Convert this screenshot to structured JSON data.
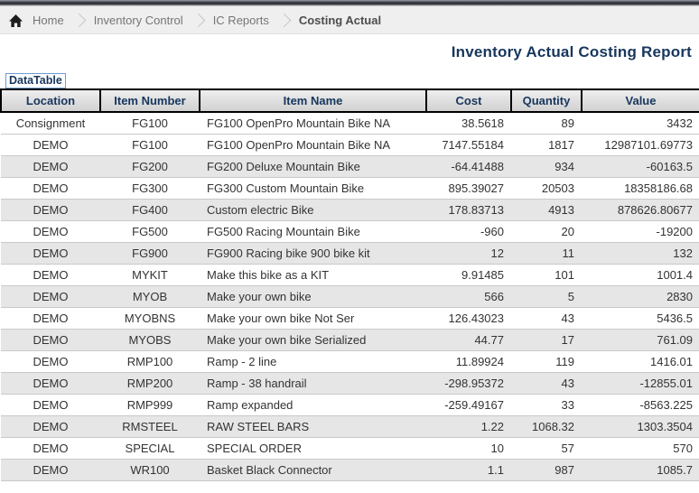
{
  "colors": {
    "accent_navy": "#17365d",
    "breadcrumb_bg": "#efefef",
    "header_cell_bg": "#dcdcdc",
    "header_border": "#000000",
    "alt_row_bg": "#e6e6e6",
    "row_separator": "#c9c9c9",
    "tab_border_blue": "#6b9bd2",
    "crumb_text": "#757575"
  },
  "icons": {
    "home": "home-icon",
    "separator": "chevron-right-icon"
  },
  "breadcrumb": {
    "items": [
      {
        "label": "Home",
        "current": false
      },
      {
        "label": "Inventory Control",
        "current": false
      },
      {
        "label": "IC Reports",
        "current": false
      },
      {
        "label": "Costing Actual",
        "current": true
      }
    ]
  },
  "page": {
    "title": "Inventory Actual Costing Report"
  },
  "datatable": {
    "label": "DataTable",
    "columns": [
      {
        "label": "Location",
        "align": "center"
      },
      {
        "label": "Item Number",
        "align": "center"
      },
      {
        "label": "Item Name",
        "align": "left"
      },
      {
        "label": "Cost",
        "align": "right"
      },
      {
        "label": "Quantity",
        "align": "right"
      },
      {
        "label": "Value",
        "align": "right"
      }
    ],
    "rows": [
      [
        "Consignment",
        "FG100",
        "FG100 OpenPro Mountain Bike NA",
        "38.5618",
        "89",
        "3432"
      ],
      [
        "DEMO",
        "FG100",
        "FG100 OpenPro Mountain Bike NA",
        "7147.55184",
        "1817",
        "12987101.69773"
      ],
      [
        "DEMO",
        "FG200",
        "FG200 Deluxe Mountain Bike",
        "-64.41488",
        "934",
        "-60163.5"
      ],
      [
        "DEMO",
        "FG300",
        "FG300 Custom Mountain Bike",
        "895.39027",
        "20503",
        "18358186.68"
      ],
      [
        "DEMO",
        "FG400",
        "Custom electric Bike",
        "178.83713",
        "4913",
        "878626.80677"
      ],
      [
        "DEMO",
        "FG500",
        "FG500 Racing Mountain Bike",
        "-960",
        "20",
        "-19200"
      ],
      [
        "DEMO",
        "FG900",
        "FG900 Racing bike 900 bike kit",
        "12",
        "11",
        "132"
      ],
      [
        "DEMO",
        "MYKIT",
        "Make this bike as a KIT",
        "9.91485",
        "101",
        "1001.4"
      ],
      [
        "DEMO",
        "MYOB",
        "Make your own bike",
        "566",
        "5",
        "2830"
      ],
      [
        "DEMO",
        "MYOBNS",
        "Make your own bike Not Ser",
        "126.43023",
        "43",
        "5436.5"
      ],
      [
        "DEMO",
        "MYOBS",
        "Make your own bike Serialized",
        "44.77",
        "17",
        "761.09"
      ],
      [
        "DEMO",
        "RMP100",
        "Ramp - 2 line",
        "11.89924",
        "119",
        "1416.01"
      ],
      [
        "DEMO",
        "RMP200",
        "Ramp - 38 handrail",
        "-298.95372",
        "43",
        "-12855.01"
      ],
      [
        "DEMO",
        "RMP999",
        "Ramp expanded",
        "-259.49167",
        "33",
        "-8563.225"
      ],
      [
        "DEMO",
        "RMSTEEL",
        "RAW STEEL BARS",
        "1.22",
        "1068.32",
        "1303.3504"
      ],
      [
        "DEMO",
        "SPECIAL",
        "SPECIAL ORDER",
        "10",
        "57",
        "570"
      ],
      [
        "DEMO",
        "WR100",
        "Basket Black Connector",
        "1.1",
        "987",
        "1085.7"
      ]
    ]
  }
}
